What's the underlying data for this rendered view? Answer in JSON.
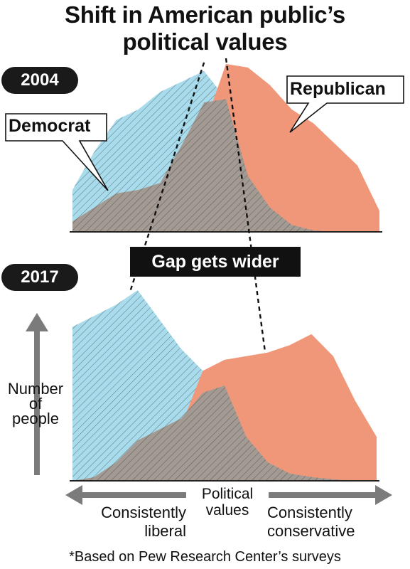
{
  "title_line1": "Shift in American public’s",
  "title_line2": "political values",
  "gap_label": "Gap gets wider",
  "yaxis_label": [
    "Number",
    "of",
    "people"
  ],
  "xaxis": {
    "center": [
      "Political",
      "values"
    ],
    "left": [
      "Consistently",
      "liberal"
    ],
    "right": [
      "Consistently",
      "conservative"
    ]
  },
  "footnote": "*Based on Pew Research Center’s surveys",
  "colors": {
    "democrat": "#a8dcec",
    "republican": "#f0977a",
    "overlap": "#a39b93",
    "axis_arrow": "#7b7b7b"
  },
  "chart_data": [
    {
      "type": "area",
      "title": "2004",
      "xlabel": "Political values",
      "ylabel": "Number of people",
      "x": [
        0,
        1,
        2,
        3,
        4,
        5,
        6,
        7,
        8,
        9,
        10,
        11,
        12,
        13,
        14
      ],
      "xlim": [
        0,
        14
      ],
      "ylim": [
        0,
        240
      ],
      "series": [
        {
          "name": "Democrat",
          "values": [
            60,
            115,
            160,
            175,
            200,
            215,
            230,
            190,
            80,
            35,
            10,
            2,
            0,
            0,
            0
          ]
        },
        {
          "name": "Republican",
          "values": [
            0,
            0,
            2,
            5,
            15,
            35,
            150,
            240,
            235,
            210,
            175,
            155,
            125,
            95,
            30
          ]
        },
        {
          "name": "Overlap",
          "values": [
            15,
            35,
            55,
            60,
            70,
            125,
            185,
            190,
            80,
            35,
            10,
            2,
            0,
            0,
            0
          ]
        }
      ],
      "annotations": [
        "Democrat",
        "Republican"
      ]
    },
    {
      "type": "area",
      "title": "2017",
      "xlabel": "Political values",
      "ylabel": "Number of people",
      "x": [
        0,
        1,
        2,
        3,
        4,
        5,
        6,
        7,
        8,
        9,
        10,
        11,
        12,
        13,
        14
      ],
      "xlim": [
        0,
        14
      ],
      "ylim": [
        0,
        260
      ],
      "series": [
        {
          "name": "Democrat",
          "values": [
            210,
            225,
            240,
            260,
            220,
            180,
            150,
            130,
            60,
            25,
            10,
            5,
            2,
            0,
            0
          ]
        },
        {
          "name": "Republican",
          "values": [
            0,
            0,
            2,
            10,
            35,
            75,
            150,
            165,
            170,
            175,
            185,
            200,
            170,
            110,
            60
          ]
        },
        {
          "name": "Overlap",
          "values": [
            0,
            5,
            25,
            55,
            70,
            85,
            120,
            130,
            60,
            25,
            10,
            5,
            2,
            0,
            0
          ]
        }
      ],
      "annotations": [
        "Gap gets wider"
      ]
    }
  ]
}
